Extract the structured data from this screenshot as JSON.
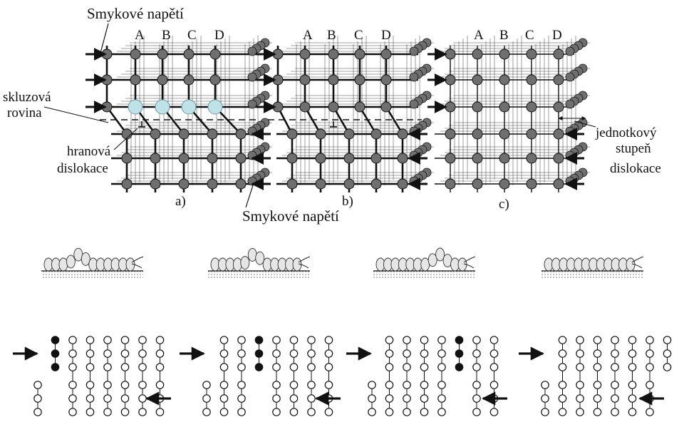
{
  "labels": {
    "shear_top": "Smykové napětí",
    "shear_bottom": "Smykové napětí",
    "slip_plane_line1": "skluzová",
    "slip_plane_line2": "rovina",
    "edge_disl_line1": "hranová",
    "edge_disl_line2": "dislokace",
    "unit_step_line1": "jednotkový",
    "unit_step_line2": "stupeň",
    "unit_step_line3": "dislokace",
    "panel_a": "a)",
    "panel_b": "b)",
    "panel_c": "c)"
  },
  "columns": [
    "A",
    "B",
    "C",
    "D"
  ],
  "colors": {
    "atom_dark": "#6f6f6f",
    "atom_highlight": "#bfe2e8",
    "line": "#111111",
    "worm_fill": "#e6e6e6",
    "ground": "#cfcfcf"
  }
}
